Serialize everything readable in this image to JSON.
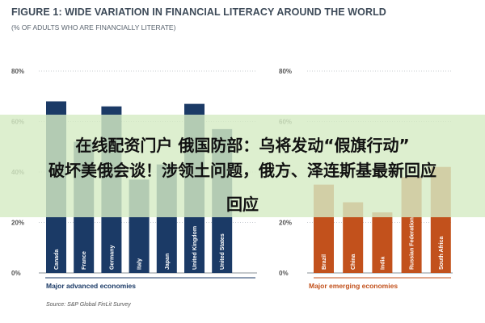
{
  "title": "FIGURE 1: WIDE VARIATION IN FINANCIAL LITERACY AROUND THE WORLD",
  "subtitle": "(% OF ADULTS WHO ARE FINANCIALLY LITERATE)",
  "colors": {
    "advanced": "#1b3a66",
    "emerging": "#c2511c",
    "grid": "#b8bdc3",
    "text": "#3d4a58",
    "banner": "#d6ecc4"
  },
  "chart_data": [
    {
      "type": "bar",
      "categories": [
        "Canada",
        "France",
        "Germany",
        "Italy",
        "Japan",
        "United Kingdom",
        "United States"
      ],
      "values": [
        68,
        52,
        66,
        37,
        43,
        67,
        57
      ],
      "ylim": [
        0,
        80
      ],
      "yticks": [
        "0%",
        "20%",
        "40%",
        "60%",
        "80%"
      ],
      "group_label": "Major advanced economies",
      "color": "#1b3a66"
    },
    {
      "type": "bar",
      "categories": [
        "Brazil",
        "China",
        "India",
        "Russian Federation",
        "South Africa"
      ],
      "values": [
        35,
        28,
        24,
        38,
        42
      ],
      "ylim": [
        0,
        80
      ],
      "yticks": [
        "0%",
        "20%",
        "40%",
        "60%",
        "80%"
      ],
      "group_label": "Major emerging economies",
      "color": "#c2511c"
    }
  ],
  "source": "Source: S&P Global FinLit Survey",
  "overlay": {
    "line1": "在线配资门户 俄国防部：乌将发动“假旗行动”",
    "line2": "破坏美俄会谈！涉领土问题，俄方、泽连斯基最新回应",
    "line3": "回应"
  }
}
